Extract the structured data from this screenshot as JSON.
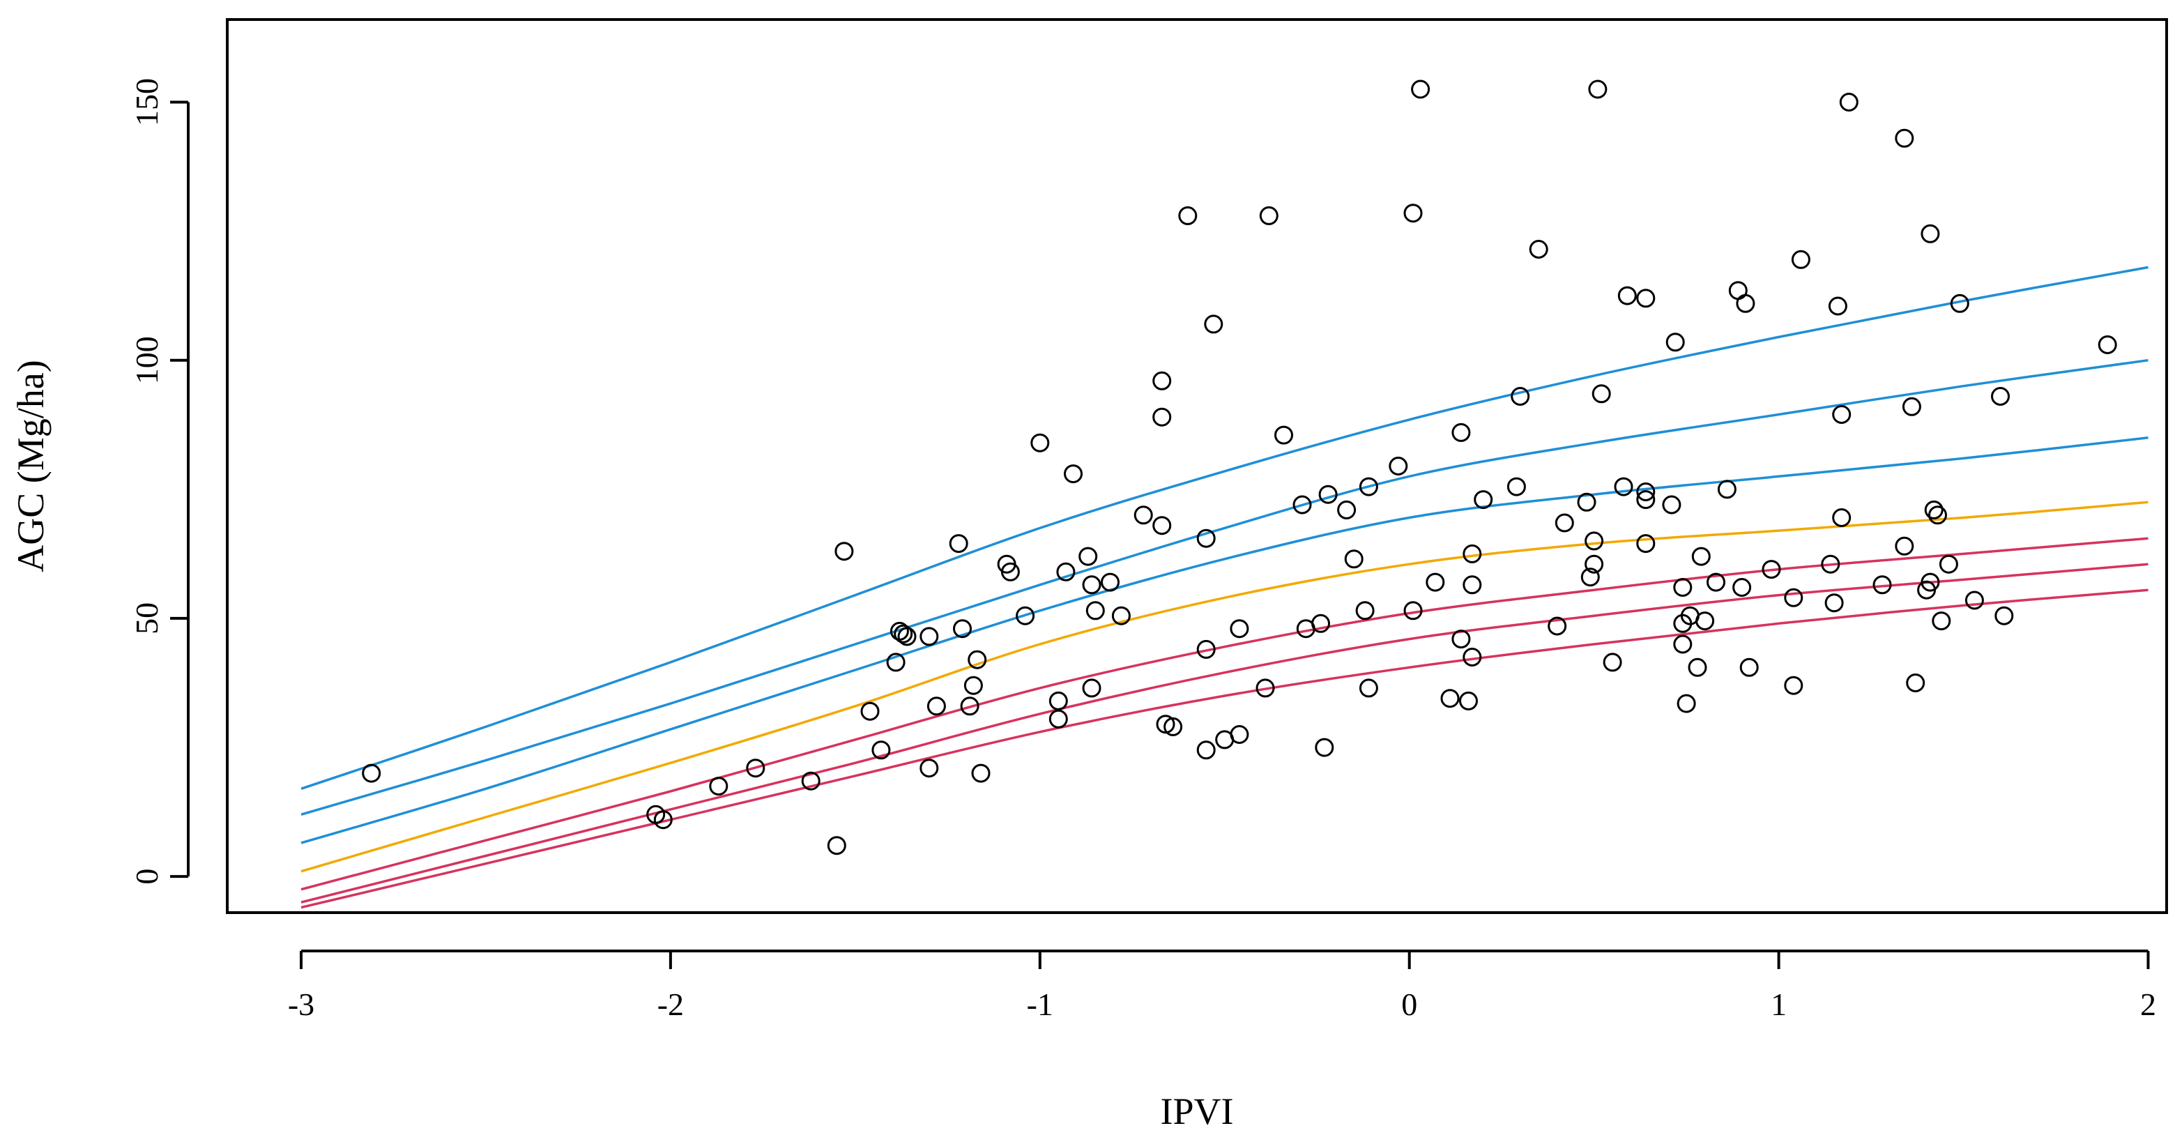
{
  "chart_data": {
    "type": "scatter",
    "title": "",
    "xlabel": "IPVI",
    "ylabel": "AGC (Mg/ha)",
    "xlim": [
      -3.2,
      2.05
    ],
    "ylim": [
      -7,
      166
    ],
    "x_ticks": [
      -3,
      -2,
      -1,
      0,
      1,
      2
    ],
    "y_ticks": [
      0,
      50,
      100,
      150
    ],
    "x_tick_labels": [
      "-3",
      "-2",
      "-1",
      "0",
      "1",
      "2"
    ],
    "y_tick_labels": [
      "0",
      "50",
      "100",
      "150"
    ],
    "grid": false,
    "legend": "none",
    "points": [
      {
        "x": -2.81,
        "y": 20.0
      },
      {
        "x": -2.04,
        "y": 12.0
      },
      {
        "x": -2.02,
        "y": 11.0
      },
      {
        "x": -1.87,
        "y": 17.5
      },
      {
        "x": -1.77,
        "y": 21.0
      },
      {
        "x": -1.62,
        "y": 18.5
      },
      {
        "x": -1.55,
        "y": 6.0
      },
      {
        "x": -1.53,
        "y": 63.0
      },
      {
        "x": -1.46,
        "y": 32.0
      },
      {
        "x": -1.43,
        "y": 24.5
      },
      {
        "x": -1.39,
        "y": 41.5
      },
      {
        "x": -1.38,
        "y": 47.5
      },
      {
        "x": -1.37,
        "y": 47.0
      },
      {
        "x": -1.36,
        "y": 46.5
      },
      {
        "x": -1.3,
        "y": 21.0
      },
      {
        "x": -1.3,
        "y": 46.5
      },
      {
        "x": -1.28,
        "y": 33.0
      },
      {
        "x": -1.22,
        "y": 64.5
      },
      {
        "x": -1.21,
        "y": 48.0
      },
      {
        "x": -1.19,
        "y": 33.0
      },
      {
        "x": -1.18,
        "y": 37.0
      },
      {
        "x": -1.17,
        "y": 42.0
      },
      {
        "x": -1.16,
        "y": 20.0
      },
      {
        "x": -1.09,
        "y": 60.5
      },
      {
        "x": -1.08,
        "y": 59.0
      },
      {
        "x": -1.04,
        "y": 50.5
      },
      {
        "x": -1.0,
        "y": 84.0
      },
      {
        "x": -0.95,
        "y": 34.0
      },
      {
        "x": -0.95,
        "y": 30.5
      },
      {
        "x": -0.93,
        "y": 59.0
      },
      {
        "x": -0.91,
        "y": 78.0
      },
      {
        "x": -0.87,
        "y": 62.0
      },
      {
        "x": -0.86,
        "y": 36.5
      },
      {
        "x": -0.86,
        "y": 56.5
      },
      {
        "x": -0.85,
        "y": 51.5
      },
      {
        "x": -0.81,
        "y": 57.0
      },
      {
        "x": -0.78,
        "y": 50.5
      },
      {
        "x": -0.72,
        "y": 70.0
      },
      {
        "x": -0.67,
        "y": 96.0
      },
      {
        "x": -0.67,
        "y": 89.0
      },
      {
        "x": -0.67,
        "y": 68.0
      },
      {
        "x": -0.66,
        "y": 29.5
      },
      {
        "x": -0.64,
        "y": 29.0
      },
      {
        "x": -0.6,
        "y": 128.0
      },
      {
        "x": -0.55,
        "y": 65.5
      },
      {
        "x": -0.55,
        "y": 44.0
      },
      {
        "x": -0.55,
        "y": 24.5
      },
      {
        "x": -0.53,
        "y": 107.0
      },
      {
        "x": -0.5,
        "y": 26.5
      },
      {
        "x": -0.46,
        "y": 48.0
      },
      {
        "x": -0.46,
        "y": 27.5
      },
      {
        "x": -0.38,
        "y": 128.0
      },
      {
        "x": -0.39,
        "y": 36.5
      },
      {
        "x": -0.34,
        "y": 85.5
      },
      {
        "x": -0.29,
        "y": 72.0
      },
      {
        "x": -0.28,
        "y": 48.0
      },
      {
        "x": -0.24,
        "y": 49.0
      },
      {
        "x": -0.23,
        "y": 25.0
      },
      {
        "x": -0.22,
        "y": 74.0
      },
      {
        "x": -0.17,
        "y": 71.0
      },
      {
        "x": -0.15,
        "y": 61.5
      },
      {
        "x": -0.12,
        "y": 51.5
      },
      {
        "x": -0.11,
        "y": 36.5
      },
      {
        "x": -0.11,
        "y": 75.5
      },
      {
        "x": -0.03,
        "y": 79.5
      },
      {
        "x": 0.01,
        "y": 128.5
      },
      {
        "x": 0.01,
        "y": 51.5
      },
      {
        "x": 0.03,
        "y": 152.5
      },
      {
        "x": 0.07,
        "y": 57.0
      },
      {
        "x": 0.11,
        "y": 34.5
      },
      {
        "x": 0.14,
        "y": 46.0
      },
      {
        "x": 0.14,
        "y": 86.0
      },
      {
        "x": 0.16,
        "y": 34.0
      },
      {
        "x": 0.17,
        "y": 62.5
      },
      {
        "x": 0.17,
        "y": 56.5
      },
      {
        "x": 0.17,
        "y": 42.5
      },
      {
        "x": 0.2,
        "y": 73.0
      },
      {
        "x": 0.29,
        "y": 75.5
      },
      {
        "x": 0.3,
        "y": 93.0
      },
      {
        "x": 0.35,
        "y": 121.5
      },
      {
        "x": 0.4,
        "y": 48.5
      },
      {
        "x": 0.42,
        "y": 68.5
      },
      {
        "x": 0.48,
        "y": 72.5
      },
      {
        "x": 0.49,
        "y": 58.0
      },
      {
        "x": 0.5,
        "y": 65.0
      },
      {
        "x": 0.5,
        "y": 60.5
      },
      {
        "x": 0.51,
        "y": 152.5
      },
      {
        "x": 0.52,
        "y": 93.5
      },
      {
        "x": 0.55,
        "y": 41.5
      },
      {
        "x": 0.58,
        "y": 75.5
      },
      {
        "x": 0.59,
        "y": 112.5
      },
      {
        "x": 0.64,
        "y": 112.0
      },
      {
        "x": 0.64,
        "y": 74.5
      },
      {
        "x": 0.64,
        "y": 73.0
      },
      {
        "x": 0.64,
        "y": 64.5
      },
      {
        "x": 0.71,
        "y": 72.0
      },
      {
        "x": 0.72,
        "y": 103.5
      },
      {
        "x": 0.74,
        "y": 56.0
      },
      {
        "x": 0.74,
        "y": 45.0
      },
      {
        "x": 0.74,
        "y": 49.0
      },
      {
        "x": 0.75,
        "y": 33.5
      },
      {
        "x": 0.76,
        "y": 50.5
      },
      {
        "x": 0.78,
        "y": 40.5
      },
      {
        "x": 0.79,
        "y": 62.0
      },
      {
        "x": 0.8,
        "y": 49.5
      },
      {
        "x": 0.83,
        "y": 57.0
      },
      {
        "x": 0.86,
        "y": 75.0
      },
      {
        "x": 0.89,
        "y": 113.5
      },
      {
        "x": 0.9,
        "y": 56.0
      },
      {
        "x": 0.91,
        "y": 111.0
      },
      {
        "x": 0.92,
        "y": 40.5
      },
      {
        "x": 0.98,
        "y": 59.5
      },
      {
        "x": 1.04,
        "y": 37.0
      },
      {
        "x": 1.04,
        "y": 54.0
      },
      {
        "x": 1.06,
        "y": 119.5
      },
      {
        "x": 1.14,
        "y": 60.5
      },
      {
        "x": 1.15,
        "y": 53.0
      },
      {
        "x": 1.16,
        "y": 110.5
      },
      {
        "x": 1.17,
        "y": 89.5
      },
      {
        "x": 1.17,
        "y": 69.5
      },
      {
        "x": 1.19,
        "y": 150.0
      },
      {
        "x": 1.28,
        "y": 56.5
      },
      {
        "x": 1.34,
        "y": 143.0
      },
      {
        "x": 1.34,
        "y": 64.0
      },
      {
        "x": 1.36,
        "y": 91.0
      },
      {
        "x": 1.37,
        "y": 37.5
      },
      {
        "x": 1.4,
        "y": 55.5
      },
      {
        "x": 1.41,
        "y": 57.0
      },
      {
        "x": 1.41,
        "y": 124.5
      },
      {
        "x": 1.42,
        "y": 71.0
      },
      {
        "x": 1.43,
        "y": 70.0
      },
      {
        "x": 1.44,
        "y": 49.5
      },
      {
        "x": 1.46,
        "y": 60.5
      },
      {
        "x": 1.49,
        "y": 111.0
      },
      {
        "x": 1.53,
        "y": 53.5
      },
      {
        "x": 1.6,
        "y": 93.0
      },
      {
        "x": 1.61,
        "y": 50.5
      },
      {
        "x": 1.89,
        "y": 103.0
      }
    ],
    "series": [
      {
        "name": "quantile-line-1",
        "color": "#1f8fd6",
        "x": [
          -3,
          -2.5,
          -2,
          -1.5,
          -1,
          -0.5,
          0,
          0.5,
          1,
          1.5,
          2
        ],
        "values": [
          17,
          29,
          41.5,
          54.5,
          67.5,
          78.5,
          88.5,
          97,
          104.5,
          111.5,
          118
        ]
      },
      {
        "name": "quantile-line-2",
        "color": "#1f8fd6",
        "x": [
          -3,
          -2.5,
          -2,
          -1.5,
          -1,
          -0.5,
          0,
          0.5,
          1,
          1.5,
          2
        ],
        "values": [
          12,
          22.5,
          33.5,
          45,
          56.5,
          67.5,
          77.5,
          84,
          89.5,
          95,
          100
        ]
      },
      {
        "name": "quantile-line-3",
        "color": "#1f8fd6",
        "x": [
          -3,
          -2.5,
          -2,
          -1.5,
          -1,
          -0.5,
          0,
          0.5,
          1,
          1.5,
          2
        ],
        "values": [
          6.5,
          17,
          28.5,
          40,
          51.5,
          61.5,
          69.5,
          74,
          77.5,
          81,
          85
        ]
      },
      {
        "name": "quantile-line-4",
        "color": "#f2a900",
        "x": [
          -3,
          -2.5,
          -2,
          -1.5,
          -1,
          -0.5,
          0,
          0.5,
          1,
          1.5,
          2
        ],
        "values": [
          1,
          11.5,
          22,
          33,
          45,
          54,
          60.5,
          64.5,
          67,
          69.5,
          72.5
        ]
      },
      {
        "name": "quantile-line-5",
        "color": "#d6335e",
        "x": [
          -3,
          -2.5,
          -2,
          -1.5,
          -1,
          -0.5,
          0,
          0.5,
          1,
          1.5,
          2
        ],
        "values": [
          -2.5,
          7,
          16.5,
          26.5,
          36.5,
          44.5,
          51,
          55.5,
          59.5,
          62.5,
          65.5
        ]
      },
      {
        "name": "quantile-line-6",
        "color": "#d6335e",
        "x": [
          -3,
          -2.5,
          -2,
          -1.5,
          -1,
          -0.5,
          0,
          0.5,
          1,
          1.5,
          2
        ],
        "values": [
          -5,
          4,
          13,
          22,
          31.5,
          39.5,
          46,
          50.5,
          54.5,
          57.5,
          60.5
        ]
      },
      {
        "name": "quantile-line-7",
        "color": "#d6335e",
        "x": [
          -3,
          -2.5,
          -2,
          -1.5,
          -1,
          -0.5,
          0,
          0.5,
          1,
          1.5,
          2
        ],
        "values": [
          -6,
          2.5,
          11,
          19.5,
          28,
          35,
          40.5,
          45,
          49,
          52.5,
          55.5
        ]
      }
    ]
  }
}
